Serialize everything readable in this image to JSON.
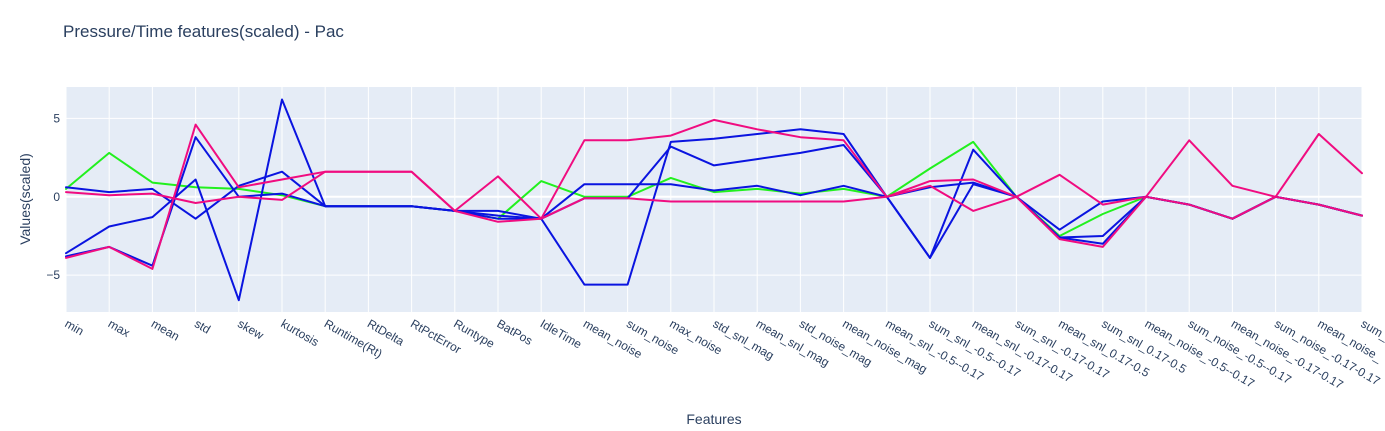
{
  "chart_data": {
    "type": "line",
    "title": "Pressure/Time features(scaled) - Pac",
    "xlabel": "Features",
    "ylabel": "Values(scaled)",
    "ylim": [
      -7.35,
      7.0
    ],
    "yticks": [
      -5,
      0,
      5
    ],
    "categories": [
      "min",
      "max",
      "mean",
      "std",
      "skew",
      "kurtosis",
      "Runtime(Rt)",
      "RtDelta",
      "RtPctError",
      "Runtype",
      "BatPos",
      "IdleTime",
      "mean_noise",
      "sum_noise",
      "max_noise",
      "std_snl_mag",
      "mean_snl_mag",
      "std_noise_mag",
      "mean_noise_mag",
      "mean_snl_-0.5--0.17",
      "sum_snl_-0.5--0.17",
      "mean_snl_-0.17-0.17",
      "sum_snl_-0.17-0.17",
      "mean_snl_0.17-0.5",
      "sum_snl_0.17-0.5",
      "mean_noise_-0.5--0.17",
      "sum_noise_-0.5--0.17",
      "mean_noise_-0.17-0.17",
      "sum_noise_-0.17-0.17",
      "mean_noise_",
      "sum_"
    ],
    "grid": true,
    "legend": "none",
    "colors": {
      "green": "#22f01e",
      "blue": "#0a14e0",
      "pink": "#f00c80"
    },
    "series": [
      {
        "color": "#22f01e",
        "values": [
          0.5,
          2.8,
          0.9,
          0.6,
          0.5,
          0.1,
          -0.6,
          -0.6,
          -0.6,
          -0.9,
          -1.4,
          1.0,
          0.0,
          0.0,
          1.2,
          0.3,
          0.5,
          0.2,
          0.5,
          0.0,
          1.8,
          3.5,
          0.0,
          -2.5,
          -1.1,
          0.0,
          -0.5,
          -1.4,
          0.0,
          -0.5,
          -1.2
        ]
      },
      {
        "color": "#0a14e0",
        "values": [
          0.6,
          0.3,
          0.5,
          -1.4,
          0.7,
          1.6,
          -0.6,
          -0.6,
          -0.6,
          -0.9,
          -1.2,
          -1.4,
          0.8,
          0.8,
          0.8,
          0.4,
          0.7,
          0.1,
          0.7,
          0.0,
          0.6,
          0.9,
          0.0,
          -2.6,
          -2.5,
          0.0,
          -0.5,
          -1.4,
          0.0,
          -0.5,
          -1.2
        ]
      },
      {
        "color": "#0a14e0",
        "values": [
          -3.6,
          -1.9,
          -1.3,
          1.1,
          -6.6,
          6.2,
          -0.6,
          -0.6,
          -0.6,
          -0.9,
          -0.9,
          -1.4,
          -5.6,
          -5.6,
          3.5,
          3.7,
          4.0,
          4.3,
          4.0,
          0.0,
          -3.9,
          3.0,
          0.0,
          -2.1,
          -0.3,
          0.0,
          -0.5,
          -1.4,
          0.0,
          -0.5,
          -1.2
        ]
      },
      {
        "color": "#0a14e0",
        "values": [
          -3.8,
          -3.2,
          -4.4,
          3.8,
          0.0,
          0.2,
          -0.6,
          -0.6,
          -0.6,
          -0.9,
          -1.4,
          -1.4,
          -0.1,
          -0.1,
          3.2,
          2.0,
          2.4,
          2.8,
          3.3,
          0.0,
          -3.9,
          0.8,
          0.0,
          -2.6,
          -3.0,
          0.0,
          -0.5,
          -1.4,
          0.0,
          -0.5,
          -1.2
        ]
      },
      {
        "color": "#f00c80",
        "values": [
          0.3,
          0.1,
          0.2,
          -0.4,
          0.0,
          -0.2,
          1.6,
          1.6,
          1.6,
          -0.9,
          1.3,
          -1.4,
          3.6,
          3.6,
          3.9,
          4.9,
          4.3,
          3.8,
          3.6,
          0.0,
          0.7,
          -0.9,
          0.0,
          1.4,
          -0.5,
          0.0,
          3.6,
          0.7,
          0.0,
          4.0,
          1.5
        ]
      },
      {
        "color": "#f00c80",
        "values": [
          -3.9,
          -3.2,
          -4.6,
          4.6,
          0.6,
          1.1,
          1.6,
          1.6,
          1.6,
          -0.9,
          -1.6,
          -1.4,
          -0.1,
          -0.1,
          -0.3,
          -0.3,
          -0.3,
          -0.3,
          -0.3,
          0.0,
          1.0,
          1.1,
          0.0,
          -2.7,
          -3.2,
          0.0,
          -0.5,
          -1.4,
          0.0,
          -0.5,
          -1.2
        ]
      }
    ]
  }
}
